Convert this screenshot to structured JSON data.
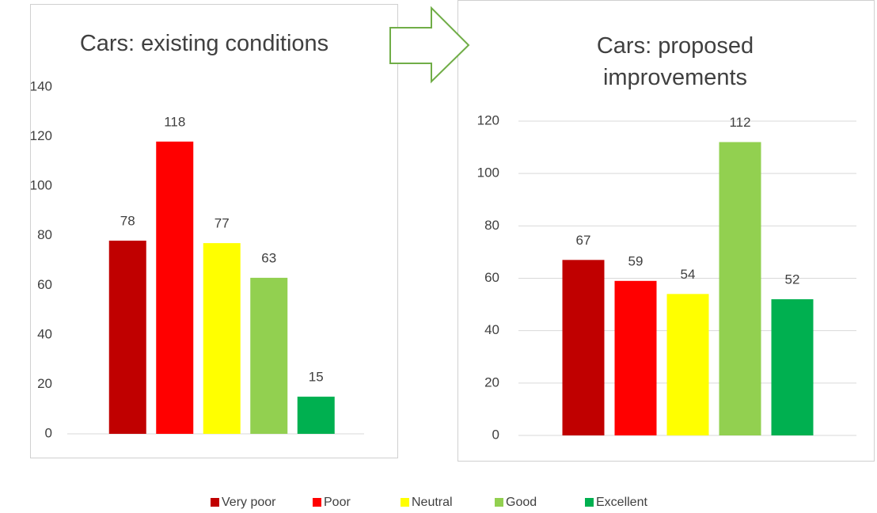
{
  "chart_data": [
    {
      "type": "bar",
      "title": "Cars: existing conditions",
      "values": [
        78,
        118,
        77,
        63,
        15
      ],
      "ylim": [
        0,
        140
      ],
      "yticks": [
        0,
        20,
        40,
        60,
        80,
        100,
        120,
        140
      ],
      "grid": false
    },
    {
      "type": "bar",
      "title": "Cars: proposed improvements",
      "values": [
        67,
        59,
        54,
        112,
        52
      ],
      "ylim": [
        0,
        120
      ],
      "yticks": [
        0,
        20,
        40,
        60,
        80,
        100,
        120
      ],
      "grid": true
    }
  ],
  "legend": {
    "categories": [
      "Very poor",
      "Poor",
      "Neutral",
      "Good",
      "Excellent"
    ],
    "colors": [
      "#c00000",
      "#ff0000",
      "#ffff00",
      "#92d050",
      "#00b050"
    ]
  }
}
